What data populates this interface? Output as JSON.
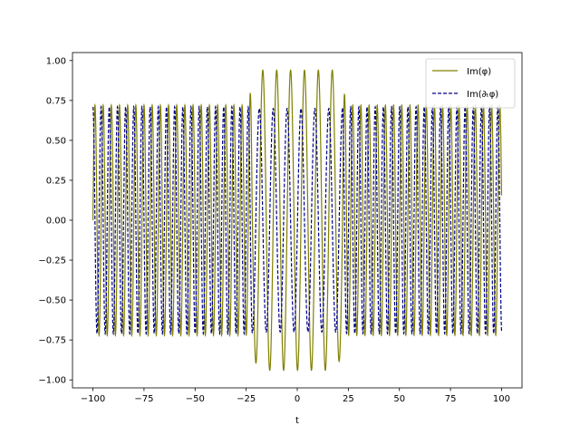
{
  "chart_data": {
    "type": "line",
    "title": "",
    "xlabel": "t",
    "ylabel": "",
    "xlim": [
      -110,
      110
    ],
    "ylim": [
      -1.05,
      1.05
    ],
    "xticks": [
      -100,
      -75,
      -50,
      -25,
      0,
      25,
      50,
      75,
      100
    ],
    "xtick_labels": [
      "−100",
      "−75",
      "−50",
      "−25",
      "0",
      "25",
      "50",
      "75",
      "100"
    ],
    "yticks": [
      1.0,
      0.75,
      0.5,
      0.25,
      0.0,
      -0.25,
      -0.5,
      -0.75,
      -1.0
    ],
    "ytick_labels": [
      "1.00",
      "0.75",
      "0.50",
      "0.25",
      "0.00",
      "−0.25",
      "−0.50",
      "−0.75",
      "−1.00"
    ],
    "grid": false,
    "legend_position": "top-right",
    "series": [
      {
        "name": "Im(φ)",
        "color": "#808000",
        "dash": "solid",
        "x_range": [
          -100,
          100
        ],
        "amplitude_outside": 0.72,
        "amplitude_inside": 0.94,
        "period_outside": 4.0,
        "period_inside": 6.8,
        "inner_region": [
          -22,
          22
        ],
        "phase": "sine",
        "start_value": 0.0
      },
      {
        "name": "Im(∂ₜφ)",
        "color": "#00008b",
        "dash": "dashed",
        "x_range": [
          -100,
          100
        ],
        "amplitude_outside": 0.71,
        "amplitude_inside": 0.7,
        "period_outside": 4.0,
        "period_inside": 6.8,
        "inner_region": [
          -22,
          22
        ],
        "phase": "cosine",
        "start_value": 0.71
      }
    ]
  }
}
